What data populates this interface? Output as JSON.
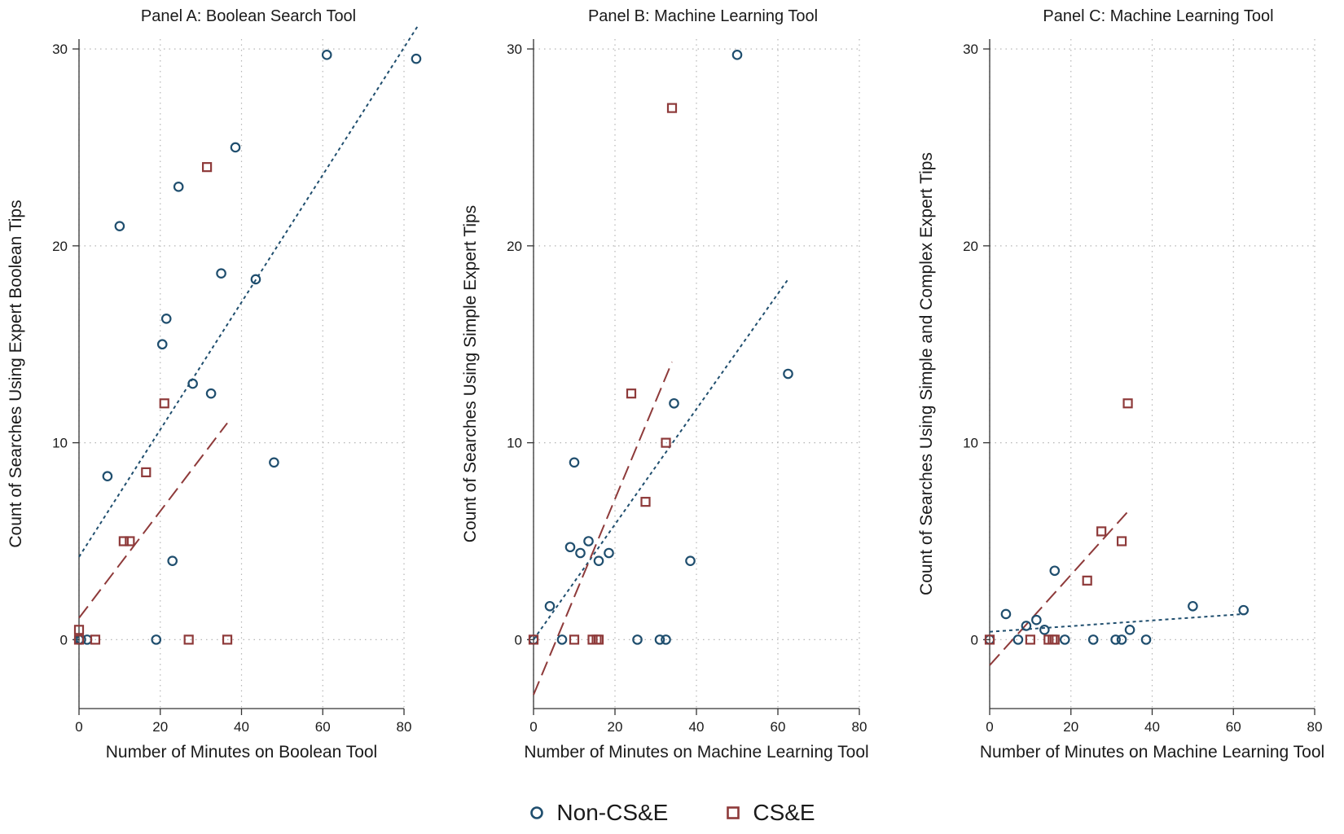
{
  "colors": {
    "non_cse": "#1f4e6e",
    "cse": "#8e3a3a",
    "grid": "#b5b5b5",
    "axis": "#333333"
  },
  "legend": {
    "items": [
      {
        "label": "Non-CS&E",
        "marker": "circle",
        "color": "#1f4e6e"
      },
      {
        "label": "CS&E",
        "marker": "square",
        "color": "#8e3a3a"
      }
    ],
    "placement": "bottom-center"
  },
  "chart_data": [
    {
      "type": "scatter",
      "title": "Panel A: Boolean Search Tool",
      "xlabel": "Number of Minutes on Boolean Tool",
      "ylabel": "Count of Searches Using Expert Boolean Tips",
      "xlim": [
        0,
        80
      ],
      "ylim": [
        -3.5,
        30.5
      ],
      "xticks": [
        0,
        20,
        40,
        60,
        80
      ],
      "yticks": [
        0,
        10,
        20,
        30
      ],
      "grid": true,
      "series": [
        {
          "name": "Non-CS&E",
          "marker": "circle",
          "points": [
            [
              0,
              0
            ],
            [
              0.5,
              0
            ],
            [
              2,
              0
            ],
            [
              7,
              8.3
            ],
            [
              10,
              21
            ],
            [
              19,
              0
            ],
            [
              20.5,
              15
            ],
            [
              21.5,
              16.3
            ],
            [
              23,
              4
            ],
            [
              24.5,
              23
            ],
            [
              28,
              13
            ],
            [
              32.5,
              12.5
            ],
            [
              35,
              18.6
            ],
            [
              38.5,
              25
            ],
            [
              43.5,
              18.3
            ],
            [
              48,
              9
            ],
            [
              61,
              29.7
            ],
            [
              83,
              29.5
            ]
          ],
          "fit": {
            "style": "dotted",
            "from": [
              0,
              4.2
            ],
            "to": [
              83.5,
              31.2
            ]
          }
        },
        {
          "name": "CS&E",
          "marker": "square",
          "points": [
            [
              0,
              0.5
            ],
            [
              0,
              0
            ],
            [
              4,
              0
            ],
            [
              11,
              5
            ],
            [
              12.5,
              5
            ],
            [
              16.5,
              8.5
            ],
            [
              21,
              12
            ],
            [
              27,
              0
            ],
            [
              31.5,
              24
            ],
            [
              36.5,
              0
            ]
          ],
          "fit": {
            "style": "dashed",
            "from": [
              0,
              1.1
            ],
            "to": [
              36.5,
              11
            ]
          }
        }
      ]
    },
    {
      "type": "scatter",
      "title": "Panel B: Machine Learning Tool",
      "xlabel": "Number of Minutes on Machine Learning Tool",
      "ylabel": "Count of Searches Using Simple Expert Tips",
      "xlim": [
        0,
        80
      ],
      "ylim": [
        -3.5,
        30.5
      ],
      "xticks": [
        0,
        20,
        40,
        60,
        80
      ],
      "yticks": [
        0,
        10,
        20,
        30
      ],
      "grid": true,
      "series": [
        {
          "name": "Non-CS&E",
          "marker": "circle",
          "points": [
            [
              0,
              0
            ],
            [
              4,
              1.7
            ],
            [
              7,
              0
            ],
            [
              9,
              4.7
            ],
            [
              10,
              9
            ],
            [
              11.5,
              4.4
            ],
            [
              13.5,
              5
            ],
            [
              16,
              4
            ],
            [
              18.5,
              4.4
            ],
            [
              25.5,
              0
            ],
            [
              31,
              0
            ],
            [
              32.5,
              0
            ],
            [
              34.5,
              12
            ],
            [
              38.5,
              4
            ],
            [
              50,
              29.7
            ],
            [
              62.5,
              13.5
            ]
          ],
          "fit": {
            "style": "dotted",
            "from": [
              0,
              0
            ],
            "to": [
              62.5,
              18.3
            ]
          }
        },
        {
          "name": "CS&E",
          "marker": "square",
          "points": [
            [
              0,
              0
            ],
            [
              10,
              0
            ],
            [
              14.5,
              0
            ],
            [
              15.5,
              0
            ],
            [
              16,
              0
            ],
            [
              24,
              12.5
            ],
            [
              27.5,
              7
            ],
            [
              32.5,
              10
            ],
            [
              34,
              27
            ]
          ],
          "fit": {
            "style": "dashed",
            "from": [
              0,
              -2.8
            ],
            "to": [
              34,
              14.1
            ]
          }
        }
      ]
    },
    {
      "type": "scatter",
      "title": "Panel C: Machine Learning Tool",
      "xlabel": "Number of Minutes on Machine Learning Tool",
      "ylabel": "Count of Searches Using Simple and Complex Expert Tips",
      "xlim": [
        0,
        80
      ],
      "ylim": [
        -3.5,
        30.5
      ],
      "xticks": [
        0,
        20,
        40,
        60,
        80
      ],
      "yticks": [
        0,
        10,
        20,
        30
      ],
      "grid": true,
      "series": [
        {
          "name": "Non-CS&E",
          "marker": "circle",
          "points": [
            [
              0,
              0
            ],
            [
              4,
              1.3
            ],
            [
              7,
              0
            ],
            [
              9,
              0.7
            ],
            [
              11.5,
              1
            ],
            [
              13.5,
              0.5
            ],
            [
              16,
              3.5
            ],
            [
              18.5,
              0
            ],
            [
              25.5,
              0
            ],
            [
              31,
              0
            ],
            [
              32.5,
              0
            ],
            [
              34.5,
              0.5
            ],
            [
              38.5,
              0
            ],
            [
              50,
              1.7
            ],
            [
              62.5,
              1.5
            ]
          ],
          "fit": {
            "style": "dotted",
            "from": [
              0,
              0.4
            ],
            "to": [
              62.5,
              1.3
            ]
          }
        },
        {
          "name": "CS&E",
          "marker": "square",
          "points": [
            [
              0,
              0
            ],
            [
              10,
              0
            ],
            [
              14.5,
              0
            ],
            [
              15.5,
              0
            ],
            [
              16,
              0
            ],
            [
              24,
              3
            ],
            [
              27.5,
              5.5
            ],
            [
              32.5,
              5
            ],
            [
              34,
              12
            ]
          ],
          "fit": {
            "style": "dashed",
            "from": [
              0,
              -1.3
            ],
            "to": [
              34,
              6.5
            ]
          }
        }
      ]
    }
  ]
}
